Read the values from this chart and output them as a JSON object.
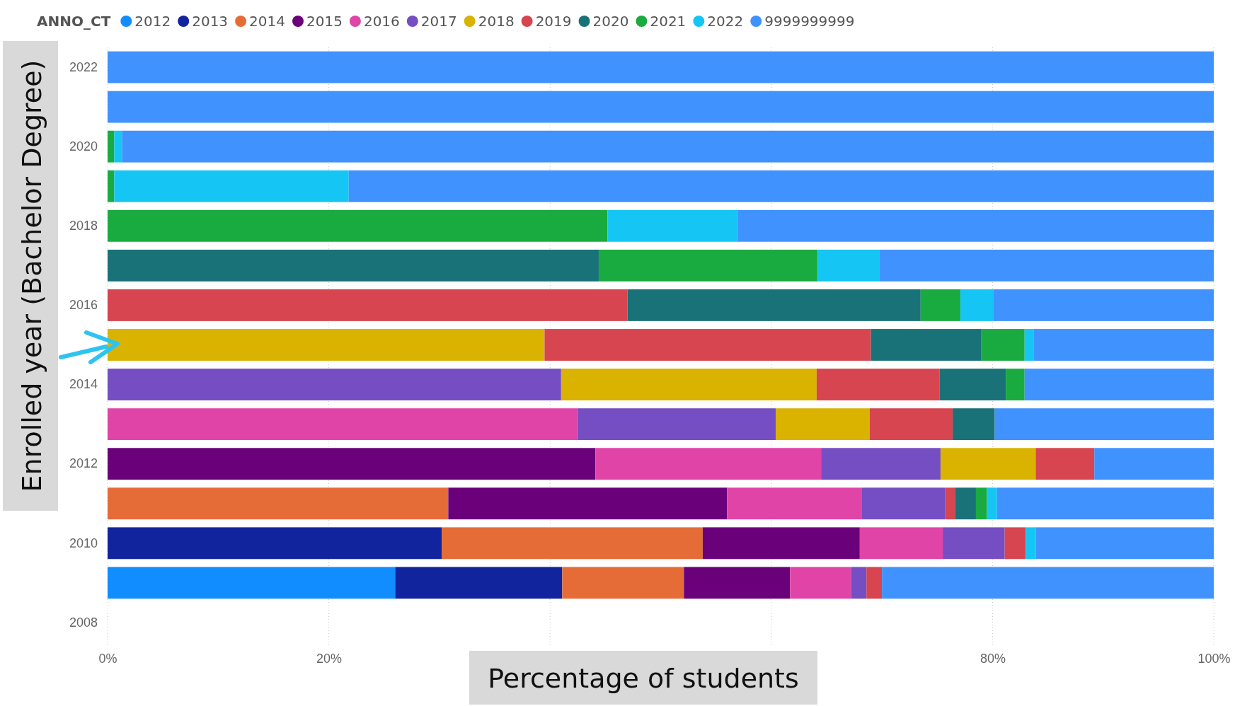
{
  "chart_data": {
    "type": "bar",
    "orientation": "horizontal",
    "stacked": true,
    "xlabel": "Percentage of students",
    "ylabel": "Enrolled year (Bachelor Degree)",
    "legend_title": "ANNO_CT",
    "legend": "top",
    "grid": "x",
    "categories": [
      "2022",
      null,
      "2020",
      null,
      "2018",
      null,
      "2016",
      null,
      "2014",
      null,
      "2012",
      null,
      "2010",
      null,
      "2008"
    ],
    "xlim": [
      0,
      100
    ],
    "xticks": [
      {
        "value": 0,
        "label": "0%"
      },
      {
        "value": 20,
        "label": "20%"
      },
      {
        "value": 40,
        "label": null
      },
      {
        "value": 60,
        "label": null
      },
      {
        "value": 80,
        "label": "80%"
      },
      {
        "value": 100,
        "label": "100%"
      }
    ],
    "series": [
      {
        "name": "2012",
        "color": "#118dff",
        "values": [
          null,
          null,
          null,
          null,
          null,
          null,
          null,
          null,
          null,
          null,
          null,
          null,
          null,
          26.0,
          null
        ]
      },
      {
        "name": "2013",
        "color": "#12239e",
        "values": [
          null,
          null,
          null,
          null,
          null,
          null,
          null,
          null,
          null,
          null,
          null,
          null,
          30.2,
          15.1,
          null
        ]
      },
      {
        "name": "2014",
        "color": "#e66c37",
        "values": [
          null,
          null,
          null,
          null,
          null,
          null,
          null,
          null,
          null,
          null,
          null,
          30.8,
          23.6,
          11.0,
          null
        ]
      },
      {
        "name": "2015",
        "color": "#6b007b",
        "values": [
          null,
          null,
          null,
          null,
          null,
          null,
          null,
          null,
          null,
          null,
          44.1,
          25.2,
          14.2,
          9.6,
          null
        ]
      },
      {
        "name": "2016",
        "color": "#e044a7",
        "values": [
          null,
          null,
          null,
          null,
          null,
          null,
          null,
          null,
          null,
          42.5,
          20.4,
          12.2,
          7.5,
          5.5,
          null
        ]
      },
      {
        "name": "2017",
        "color": "#744ec2",
        "values": [
          null,
          null,
          null,
          null,
          null,
          null,
          null,
          null,
          41.0,
          17.9,
          10.8,
          7.5,
          5.6,
          1.4,
          null
        ]
      },
      {
        "name": "2018",
        "color": "#d9b300",
        "values": [
          null,
          null,
          null,
          null,
          null,
          null,
          null,
          39.5,
          23.1,
          8.5,
          8.6,
          null,
          null,
          null,
          null
        ]
      },
      {
        "name": "2019",
        "color": "#d64550",
        "values": [
          null,
          null,
          null,
          null,
          null,
          null,
          47.0,
          29.5,
          11.1,
          7.5,
          5.3,
          0.9,
          1.9,
          1.4,
          null
        ]
      },
      {
        "name": "2020",
        "color": "#197278",
        "values": [
          null,
          null,
          null,
          null,
          null,
          44.4,
          26.5,
          10.0,
          6.0,
          3.8,
          null,
          1.9,
          null,
          null,
          null
        ]
      },
      {
        "name": "2021",
        "color": "#1aab40",
        "values": [
          null,
          null,
          0.6,
          0.6,
          45.2,
          19.8,
          3.6,
          3.9,
          1.7,
          null,
          null,
          1.0,
          null,
          null,
          null
        ]
      },
      {
        "name": "2022",
        "color": "#15c6f4",
        "values": [
          null,
          null,
          0.7,
          21.2,
          11.8,
          5.6,
          3.0,
          0.8,
          null,
          null,
          null,
          0.9,
          0.9,
          null,
          null
        ]
      },
      {
        "name": "9999999999",
        "color": "#4092ff",
        "values": [
          100,
          100,
          98.7,
          78.2,
          43.0,
          30.2,
          19.9,
          16.3,
          17.1,
          19.8,
          10.8,
          19.6,
          16.1,
          30.0,
          null
        ]
      }
    ]
  }
}
